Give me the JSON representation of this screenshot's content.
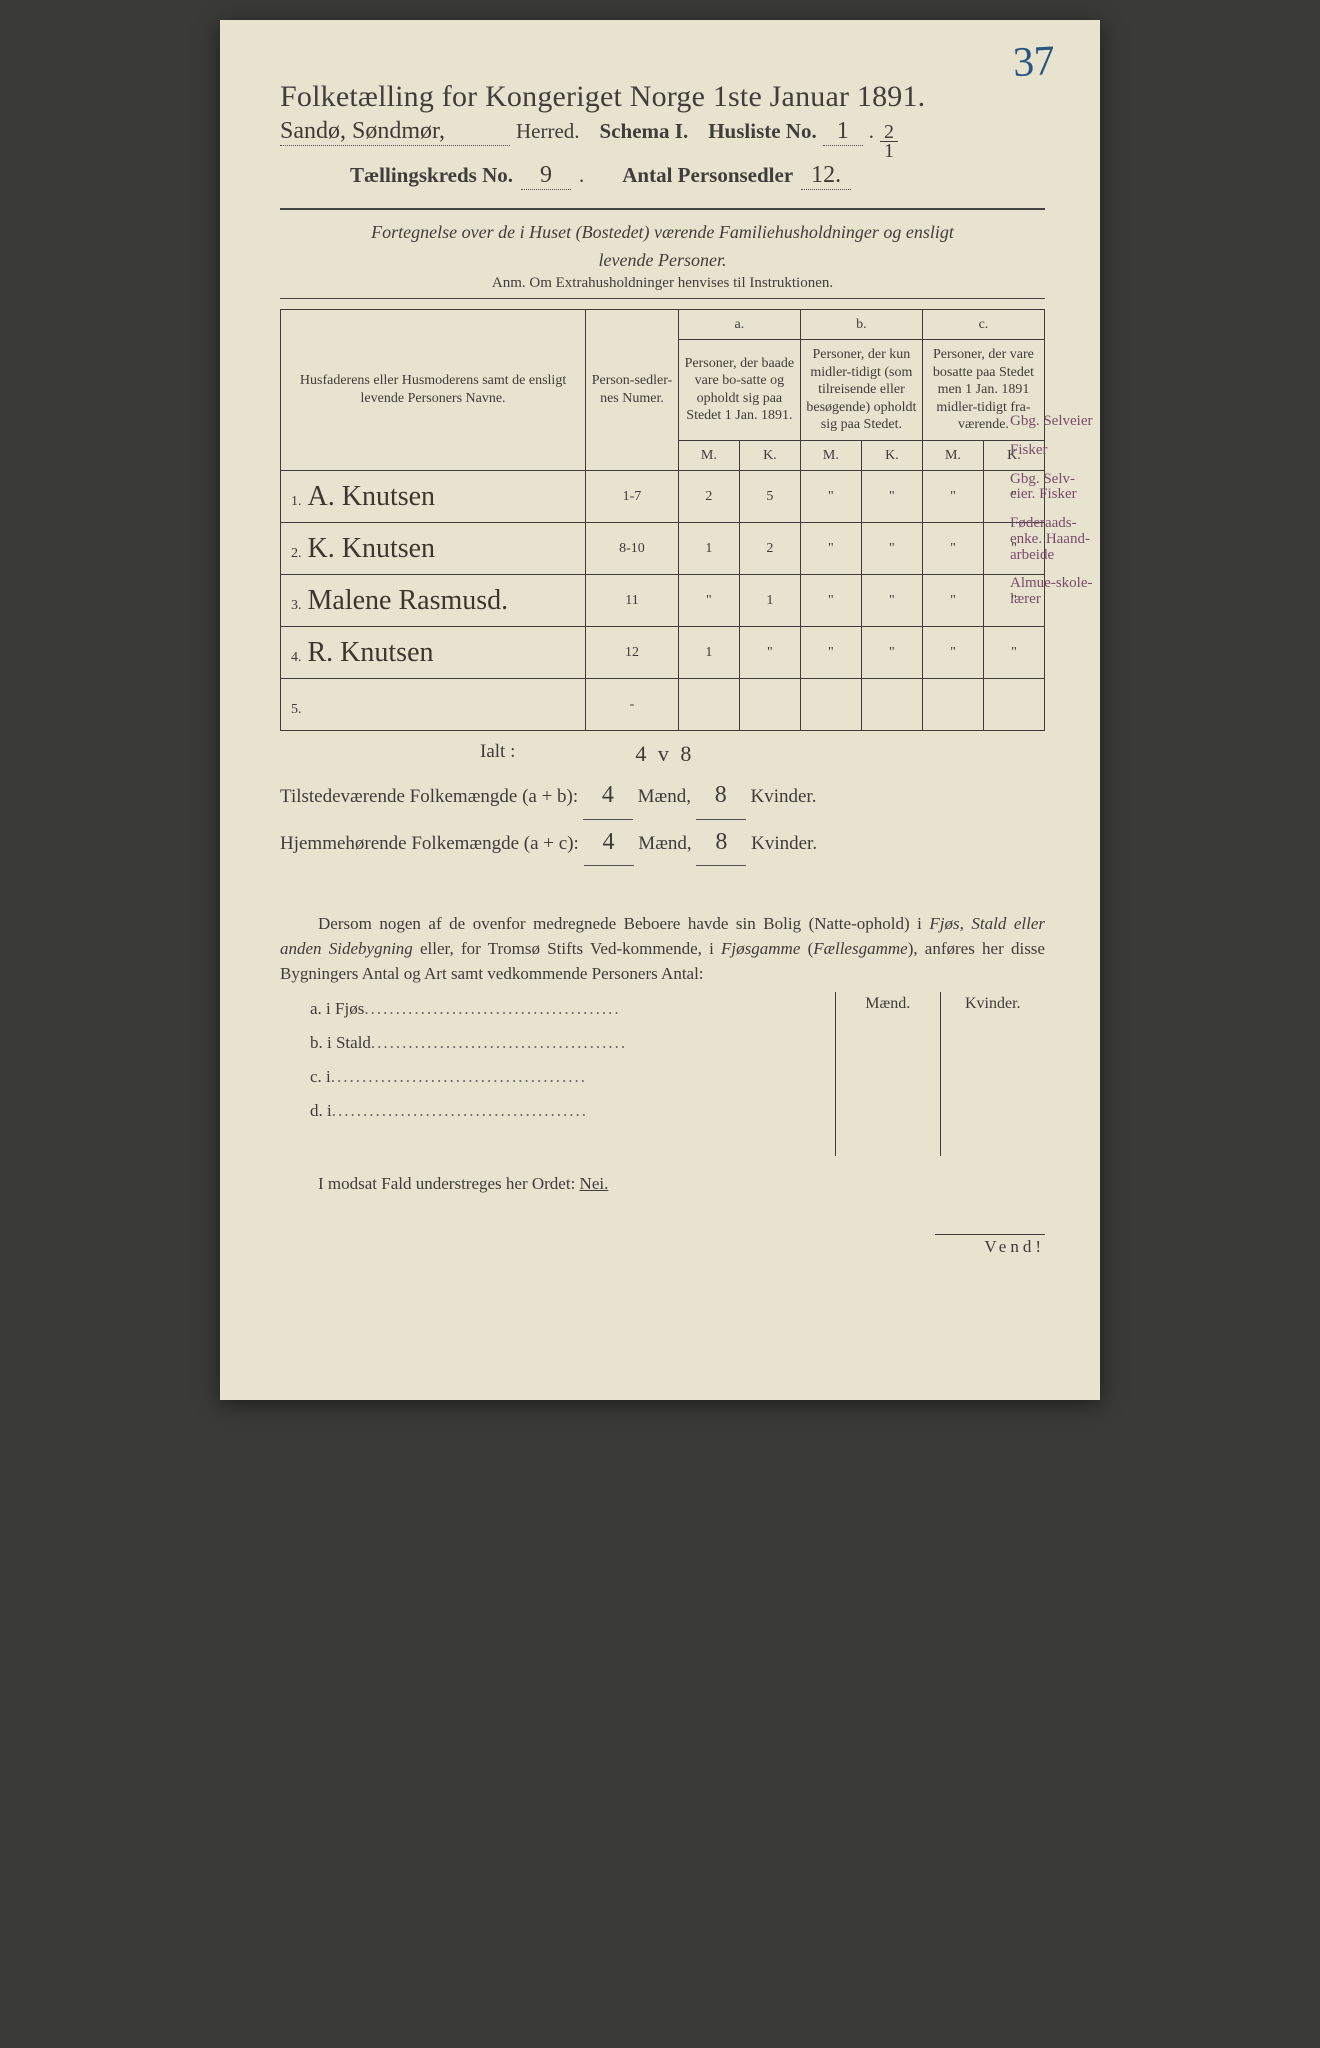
{
  "page_number_handwritten": "37",
  "title": "Folketælling for Kongeriget Norge 1ste Januar 1891.",
  "line2": {
    "herred_handwritten": "Sandø, Søndmør,",
    "herred_label": "Herred.",
    "schema_label": "Schema I.",
    "husliste_label": "Husliste No.",
    "husliste_no": "1",
    "husliste_frac_top": "2",
    "husliste_frac_bot": "1"
  },
  "line3": {
    "kreds_label": "Tællingskreds No.",
    "kreds_no": "9",
    "antal_label": "Antal Personsedler",
    "antal_no": "12."
  },
  "fortegnelse_l1": "Fortegnelse over de i Huset (Bostedet) værende Familiehusholdninger og ensligt",
  "fortegnelse_l2": "levende Personer.",
  "anm": "Anm.   Om Extrahusholdninger henvises til Instruktionen.",
  "headers": {
    "name": "Husfaderens eller Husmoderens samt de ensligt levende Personers Navne.",
    "num": "Person-sedler-nes Numer.",
    "a_top": "a.",
    "a": "Personer, der baade vare bo-satte og opholdt sig paa Stedet 1 Jan. 1891.",
    "b_top": "b.",
    "b": "Personer, der kun midler-tidigt (som tilreisende eller besøgende) opholdt sig paa Stedet.",
    "c_top": "c.",
    "c": "Personer, der vare bosatte paa Stedet men 1 Jan. 1891 midler-tidigt fra-værende.",
    "M": "M.",
    "K": "K."
  },
  "rows": [
    {
      "idx": "1.",
      "name": "A. Knutsen",
      "num": "1-7",
      "aM": "2",
      "aK": "5",
      "bM": "\"",
      "bK": "\"",
      "cM": "\"",
      "cK": "\""
    },
    {
      "idx": "2.",
      "name": "K. Knutsen",
      "num": "8-10",
      "aM": "1",
      "aK": "2",
      "bM": "\"",
      "bK": "\"",
      "cM": "\"",
      "cK": "\""
    },
    {
      "idx": "3.",
      "name": "Malene Rasmusd.",
      "num": "11",
      "aM": "\"",
      "aK": "1",
      "bM": "\"",
      "bK": "\"",
      "cM": "\"",
      "cK": "\""
    },
    {
      "idx": "4.",
      "name": "R. Knutsen",
      "num": "12",
      "aM": "1",
      "aK": "\"",
      "bM": "\"",
      "bK": "\"",
      "cM": "\"",
      "cK": "\""
    },
    {
      "idx": "5.",
      "name": "",
      "num": "-",
      "aM": "",
      "aK": "",
      "bM": "",
      "bK": "",
      "cM": "",
      "cK": ""
    }
  ],
  "margin_notes": [
    "Gbg. Selveier",
    "Fisker",
    "Gbg. Selv-eier. Fisker",
    "Føderaads-enke. Haand-arbeide",
    "Almue-skole-lærer"
  ],
  "ialt_label": "Ialt :",
  "ialt_hand_m": "4",
  "ialt_hand_sep": "v",
  "ialt_hand_k": "8",
  "totals": {
    "l1_label": "Tilstedeværende Folkemængde (a + b):",
    "l1_m": "4",
    "l1_k": "8",
    "l2_label": "Hjemmehørende Folkemængde (a + c):",
    "l2_m": "4",
    "l2_k": "8",
    "maend": "Mænd,",
    "kvinder": "Kvinder."
  },
  "para": "Dersom nogen af de ovenfor medregnede Beboere havde sin Bolig (Natte-ophold) i Fjøs, Stald eller anden Sidebygning eller, for Tromsø Stifts Ved-kommende, i Fjøsgamme (Fællesgamme), anføres her disse Bygningers Antal og Art samt vedkommende Personers Antal:",
  "side": {
    "maend": "Mænd.",
    "kvinder": "Kvinder.",
    "a": "a.  i      Fjøs",
    "b": "b.  i      Stald",
    "c": "c.  i",
    "d": "d.  i"
  },
  "nei": "I modsat Fald understreges her Ordet: ",
  "nei_word": "Nei.",
  "vend": "Vend!",
  "colors": {
    "paper": "#e8e3cf",
    "ink": "#3d3c38",
    "hand_ink": "#3c362e",
    "blue_pencil": "#2a5580",
    "purple_pencil": "#7a4a6a"
  }
}
